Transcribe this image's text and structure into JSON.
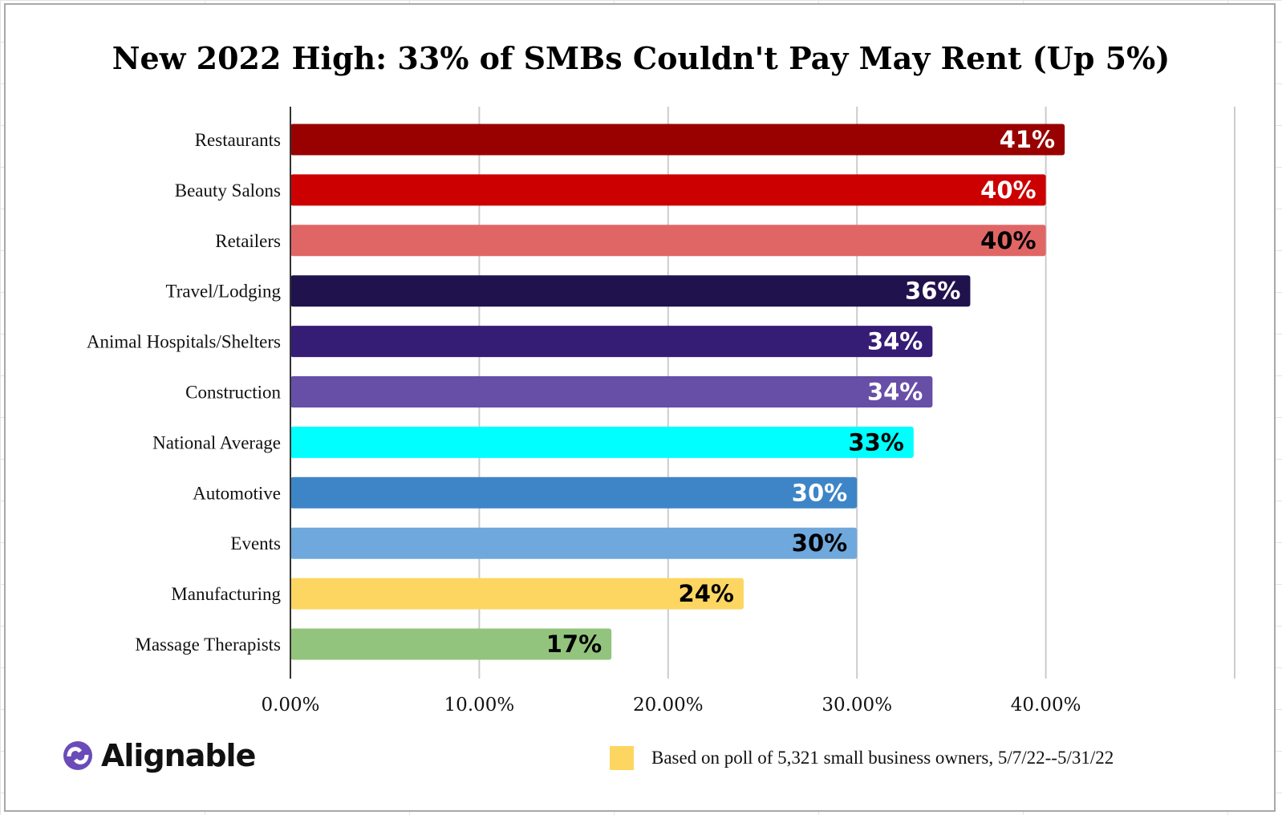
{
  "chart_data": {
    "type": "bar",
    "orientation": "horizontal",
    "title": "New 2022 High: 33% of SMBs Couldn't Pay May Rent (Up 5%)",
    "categories": [
      "Restaurants",
      "Beauty Salons",
      "Retailers",
      "Travel/Lodging",
      "Animal Hospitals/Shelters",
      "Construction",
      "National Average",
      "Automotive",
      "Events",
      "Manufacturing",
      "Massage Therapists"
    ],
    "values": [
      41,
      40,
      40,
      36,
      34,
      34,
      33,
      30,
      30,
      24,
      17
    ],
    "data_labels": [
      "41%",
      "40%",
      "40%",
      "36%",
      "34%",
      "34%",
      "33%",
      "30%",
      "30%",
      "24%",
      "17%"
    ],
    "colors": [
      "#990000",
      "#cc0000",
      "#e06666",
      "#20124d",
      "#351c75",
      "#674ea7",
      "#00ffff",
      "#3d85c6",
      "#6fa8dc",
      "#fdd662",
      "#93c47d"
    ],
    "label_colors": [
      "#ffffff",
      "#ffffff",
      "#000000",
      "#ffffff",
      "#ffffff",
      "#ffffff",
      "#000000",
      "#ffffff",
      "#000000",
      "#000000",
      "#000000"
    ],
    "xlim": [
      0,
      50
    ],
    "x_ticks": [
      0,
      10,
      20,
      30,
      40
    ],
    "x_tick_labels": [
      "0.00%",
      "10.00%",
      "20.00%",
      "30.00%",
      "40.00%"
    ],
    "grid": true,
    "xlabel": "",
    "ylabel": ""
  },
  "footer": {
    "logo": "Alignable",
    "note": "Based on poll of 5,321 small business owners, 5/7/22--5/31/22",
    "note_color": "#fdd662"
  }
}
